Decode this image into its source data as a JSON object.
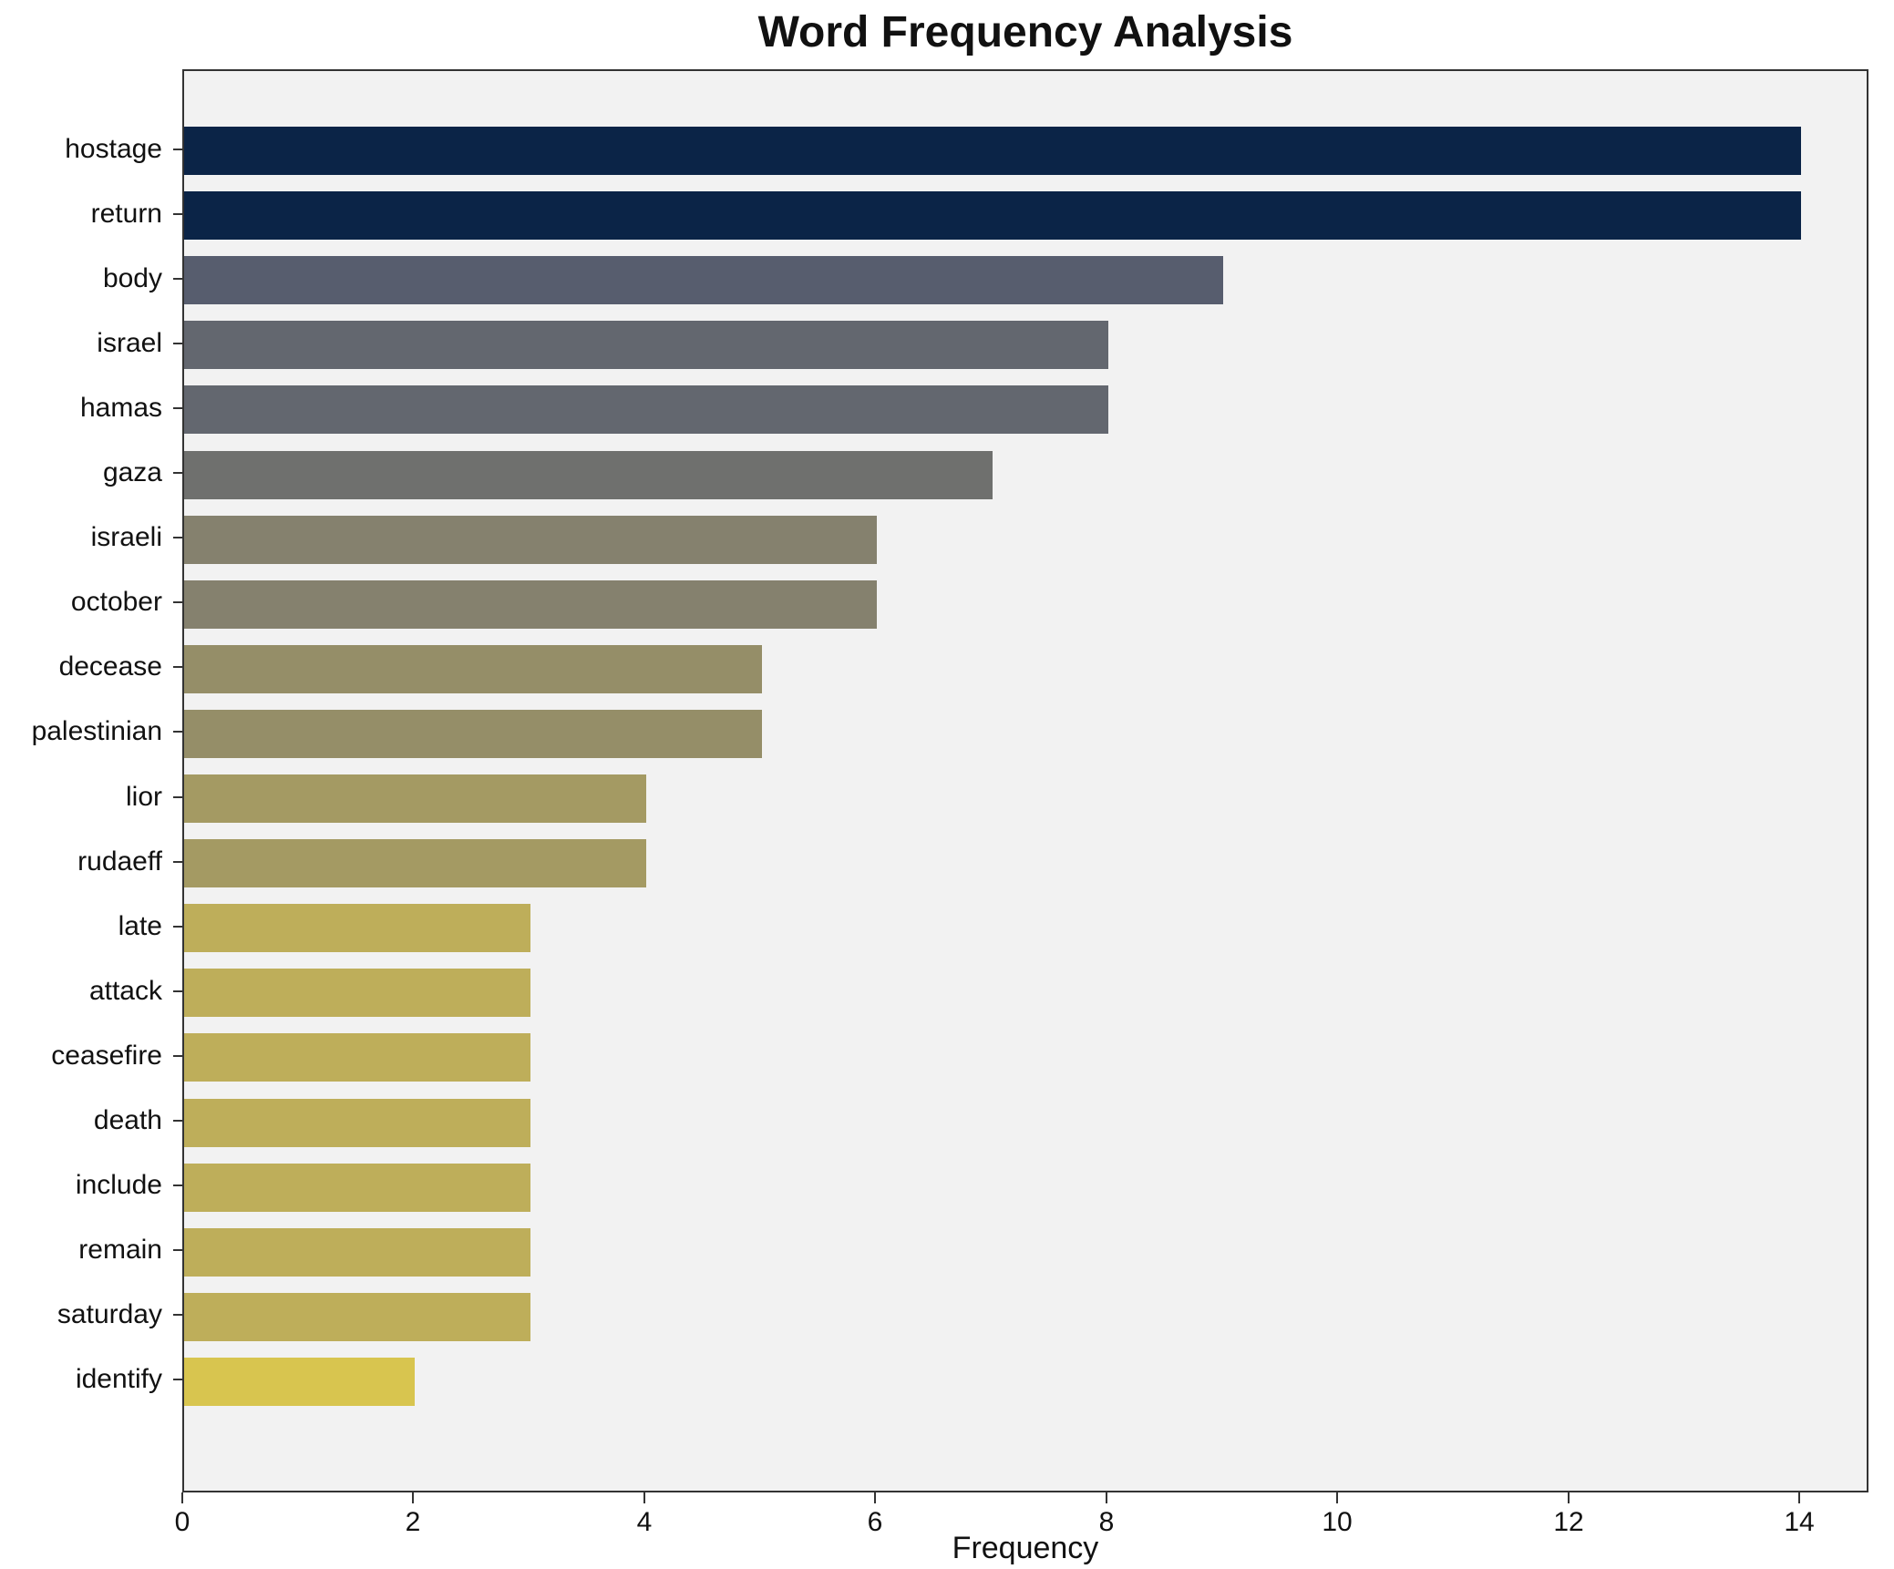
{
  "chart_data": {
    "type": "bar",
    "orientation": "horizontal",
    "title": "Word Frequency Analysis",
    "xlabel": "Frequency",
    "ylabel": "",
    "xlim": [
      0,
      14.6
    ],
    "xticks": [
      0,
      2,
      4,
      6,
      8,
      10,
      12,
      14
    ],
    "categories": [
      "hostage",
      "return",
      "body",
      "israel",
      "hamas",
      "gaza",
      "israeli",
      "october",
      "decease",
      "palestinian",
      "lior",
      "rudaeff",
      "late",
      "attack",
      "ceasefire",
      "death",
      "include",
      "remain",
      "saturday",
      "identify"
    ],
    "values": [
      14,
      14,
      9,
      8,
      8,
      7,
      6,
      6,
      5,
      5,
      4,
      4,
      3,
      3,
      3,
      3,
      3,
      3,
      3,
      2
    ],
    "bar_colors": [
      "#0b2447",
      "#0b2447",
      "#575d6e",
      "#63676f",
      "#63676f",
      "#6f706e",
      "#85816e",
      "#85816e",
      "#958e68",
      "#958e68",
      "#a49a63",
      "#a49a63",
      "#beae5a",
      "#beae5a",
      "#beae5a",
      "#beae5a",
      "#beae5a",
      "#beae5a",
      "#beae5a",
      "#d8c54f"
    ],
    "grid": false,
    "legend_position": "none",
    "plot_background": "#f2f2f2",
    "spine_color": "#333333",
    "text_color": "#111111"
  }
}
